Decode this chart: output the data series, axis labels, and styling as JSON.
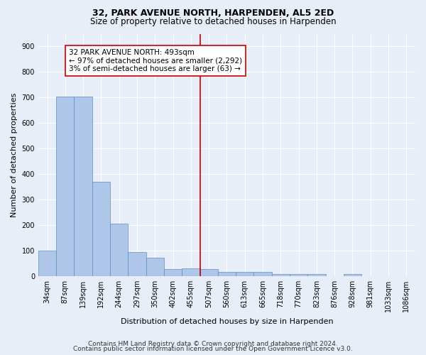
{
  "title_line1": "32, PARK AVENUE NORTH, HARPENDEN, AL5 2ED",
  "title_line2": "Size of property relative to detached houses in Harpenden",
  "xlabel": "Distribution of detached houses by size in Harpenden",
  "ylabel": "Number of detached properties",
  "categories": [
    "34sqm",
    "87sqm",
    "139sqm",
    "192sqm",
    "244sqm",
    "297sqm",
    "350sqm",
    "402sqm",
    "455sqm",
    "507sqm",
    "560sqm",
    "613sqm",
    "665sqm",
    "718sqm",
    "770sqm",
    "823sqm",
    "876sqm",
    "928sqm",
    "981sqm",
    "1033sqm",
    "1086sqm"
  ],
  "values": [
    100,
    705,
    705,
    370,
    205,
    95,
    72,
    28,
    32,
    28,
    18,
    18,
    18,
    8,
    8,
    8,
    0,
    8,
    0,
    0,
    0
  ],
  "bar_color": "#aec6e8",
  "bar_edge_color": "#5a8fc2",
  "annotation_line_label": "32 PARK AVENUE NORTH: 493sqm",
  "annotation_smaller": "← 97% of detached houses are smaller (2,292)",
  "annotation_larger": "3% of semi-detached houses are larger (63) →",
  "annotation_box_color": "#ffffff",
  "annotation_box_edge_color": "#cc0000",
  "vline_color": "#cc0000",
  "vline_x": 8.5,
  "ylim": [
    0,
    950
  ],
  "yticks": [
    0,
    100,
    200,
    300,
    400,
    500,
    600,
    700,
    800,
    900
  ],
  "background_color": "#e8eef8",
  "footer_line1": "Contains HM Land Registry data © Crown copyright and database right 2024.",
  "footer_line2": "Contains public sector information licensed under the Open Government Licence v3.0.",
  "title_fontsize": 9,
  "subtitle_fontsize": 8.5,
  "axis_label_fontsize": 8,
  "tick_fontsize": 7,
  "annotation_fontsize": 7.5,
  "footer_fontsize": 6.5
}
